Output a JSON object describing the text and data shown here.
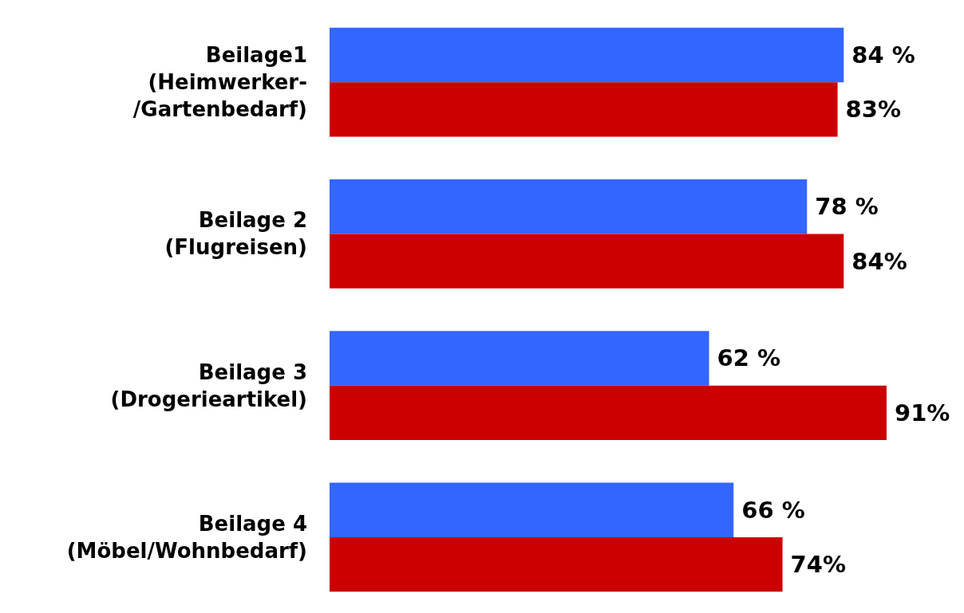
{
  "chart_data": {
    "type": "bar",
    "orientation": "horizontal",
    "categories": [
      "Beilage1\n(Heimwerker-\n/Gartenbedarf)",
      "Beilage 2\n(Flugreisen)",
      "Beilage 3\n(Drogerieartikel)",
      "Beilage 4\n(Möbel/Wohnbedarf)"
    ],
    "series": [
      {
        "color": "#3366ff",
        "values": [
          84,
          78,
          62,
          66
        ],
        "value_labels": [
          "84 %",
          "78 %",
          "62 %",
          "66 %"
        ]
      },
      {
        "color": "#cc0000",
        "values": [
          83,
          84,
          91,
          74
        ],
        "value_labels": [
          "83%",
          "84%",
          "91%",
          "74%"
        ]
      }
    ],
    "tick_labels": "y"
  }
}
